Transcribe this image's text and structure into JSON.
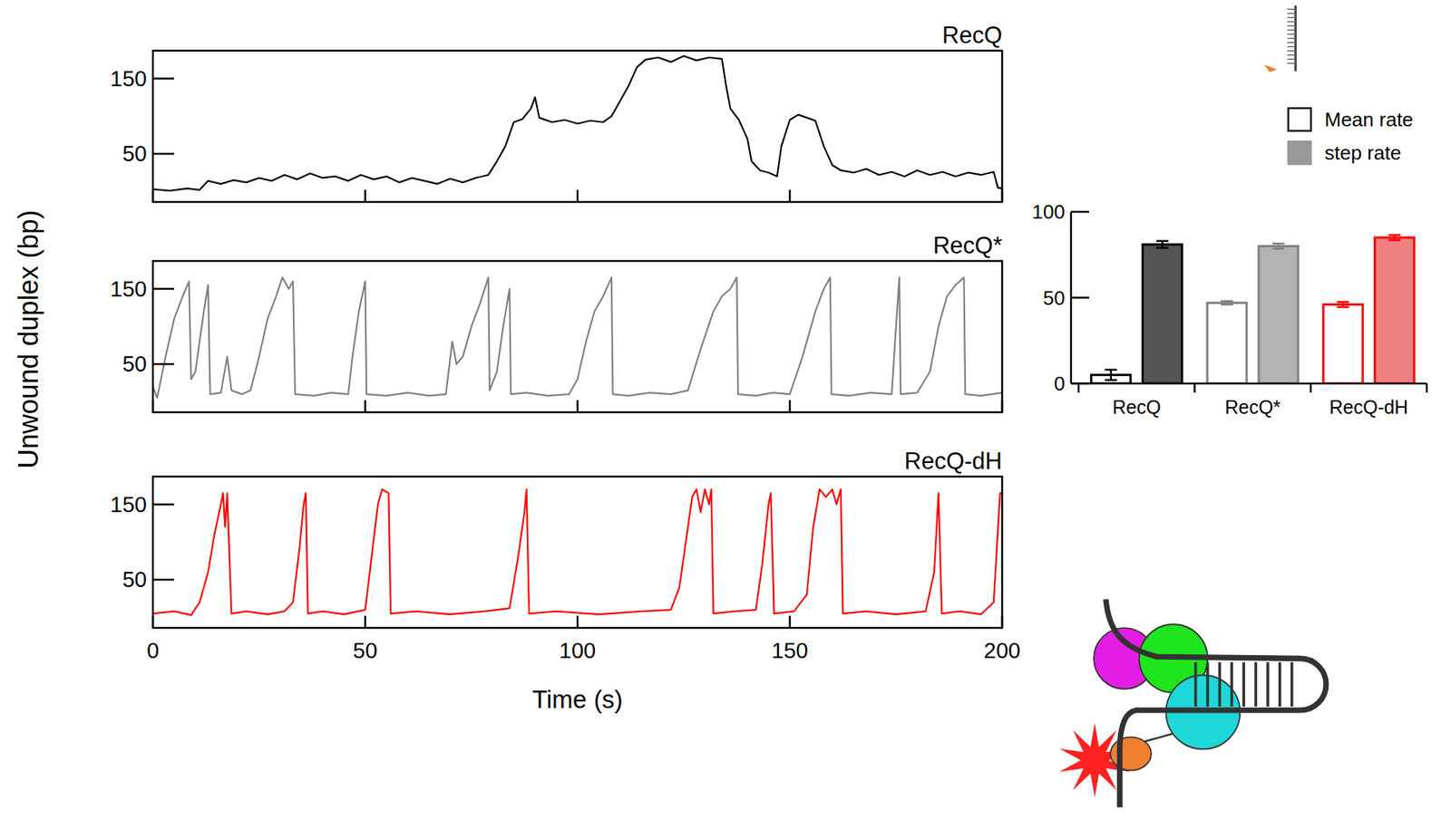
{
  "chart_data": [
    {
      "type": "line",
      "title": "RecQ",
      "xlim": [
        0,
        200
      ],
      "xticks": [
        0,
        50,
        100,
        150,
        200
      ],
      "ylim": [
        -14,
        187
      ],
      "yticks": [
        50,
        150
      ],
      "tick_labels": "y",
      "series": [
        {
          "color": "#000000",
          "x": [
            0,
            4,
            8,
            11,
            13,
            16,
            19,
            22,
            25,
            28,
            31,
            34,
            37,
            40,
            43,
            46,
            49,
            52,
            55,
            58,
            61,
            64,
            67,
            70,
            73,
            76,
            79,
            81,
            83,
            85,
            87,
            89,
            90,
            91,
            94,
            97,
            100,
            103,
            106,
            108,
            110,
            112,
            114,
            116,
            119,
            122,
            125,
            128,
            131,
            134,
            135,
            136,
            138,
            140,
            141,
            143,
            145,
            147,
            148,
            150,
            152,
            154,
            156,
            158,
            160,
            162,
            165,
            168,
            171,
            174,
            177,
            180,
            183,
            186,
            189,
            192,
            195,
            198,
            199,
            200
          ],
          "values": [
            3,
            1,
            4,
            2,
            14,
            10,
            15,
            12,
            18,
            14,
            22,
            16,
            24,
            18,
            20,
            14,
            22,
            16,
            20,
            12,
            18,
            14,
            10,
            17,
            12,
            18,
            22,
            40,
            60,
            92,
            96,
            110,
            125,
            98,
            92,
            95,
            90,
            94,
            92,
            100,
            120,
            140,
            165,
            175,
            178,
            172,
            180,
            174,
            178,
            176,
            140,
            110,
            95,
            70,
            40,
            28,
            25,
            20,
            60,
            95,
            102,
            98,
            94,
            60,
            35,
            28,
            25,
            30,
            22,
            26,
            20,
            28,
            22,
            26,
            20,
            25,
            22,
            26,
            5,
            4
          ]
        }
      ]
    },
    {
      "type": "line",
      "title": "RecQ*",
      "ylabel": "Unwound duplex (bp)",
      "xlim": [
        0,
        200
      ],
      "xticks": [
        0,
        50,
        100,
        150,
        200
      ],
      "ylim": [
        -14,
        187
      ],
      "yticks": [
        50,
        150
      ],
      "tick_labels": "y",
      "series": [
        {
          "color": "#808080",
          "x": [
            0,
            1,
            3,
            5,
            7,
            8.5,
            9,
            10,
            12,
            13,
            13.5,
            16,
            17.5,
            18.5,
            21,
            23,
            25,
            27,
            29,
            30.5,
            32,
            33,
            33.5,
            38,
            42,
            46,
            47,
            48.5,
            50,
            50.3,
            55,
            60,
            65,
            69,
            70.5,
            71.5,
            73,
            75,
            77,
            79,
            79.3,
            81,
            82.5,
            84,
            84.3,
            88,
            93,
            98,
            100,
            102,
            104,
            106,
            108,
            108.3,
            112,
            117,
            122,
            126,
            129,
            132,
            134,
            136,
            137.5,
            137.8,
            142,
            146,
            150,
            153,
            156,
            158,
            159.5,
            159.8,
            164,
            169,
            174,
            175,
            175.8,
            176.1,
            180,
            183,
            185,
            187,
            189,
            191,
            191.3,
            195,
            200
          ],
          "values": [
            20,
            5,
            60,
            110,
            140,
            160,
            30,
            40,
            120,
            155,
            10,
            12,
            60,
            15,
            10,
            15,
            60,
            110,
            140,
            165,
            150,
            160,
            10,
            8,
            12,
            10,
            60,
            120,
            160,
            10,
            8,
            12,
            8,
            10,
            80,
            50,
            60,
            100,
            130,
            165,
            15,
            40,
            100,
            150,
            10,
            12,
            8,
            10,
            30,
            80,
            120,
            140,
            165,
            10,
            8,
            12,
            10,
            15,
            70,
            120,
            140,
            150,
            165,
            10,
            8,
            12,
            10,
            60,
            120,
            150,
            165,
            10,
            8,
            12,
            10,
            100,
            165,
            10,
            12,
            40,
            100,
            140,
            155,
            165,
            10,
            8,
            12
          ]
        }
      ]
    },
    {
      "type": "line",
      "title": "RecQ-dH",
      "xlabel": "Time (s)",
      "xlim": [
        0,
        200
      ],
      "xticks": [
        0,
        50,
        100,
        150,
        200
      ],
      "ylim": [
        -14,
        187
      ],
      "yticks": [
        50,
        150
      ],
      "series": [
        {
          "color": "#ff0000",
          "x": [
            0,
            5,
            9,
            11,
            13,
            14.5,
            16,
            16.5,
            17,
            17.5,
            18.5,
            22,
            27,
            31,
            33,
            34.5,
            35.5,
            36,
            36.5,
            40,
            45,
            50,
            51.5,
            53,
            54,
            55.5,
            56,
            62,
            70,
            78,
            84,
            86,
            87.5,
            88,
            88.6,
            95,
            105,
            115,
            122,
            124,
            126,
            127,
            128,
            129,
            130,
            131,
            131.5,
            132,
            137,
            142,
            143.5,
            145,
            145.5,
            146.3,
            151,
            154,
            155.5,
            157,
            158.5,
            160,
            161,
            162,
            162.5,
            168,
            175,
            182,
            184,
            185,
            185.8,
            190,
            195,
            198,
            199.5,
            200
          ],
          "values": [
            5,
            8,
            3,
            20,
            60,
            110,
            150,
            165,
            120,
            165,
            5,
            8,
            4,
            8,
            20,
            90,
            150,
            165,
            5,
            8,
            4,
            10,
            80,
            150,
            170,
            165,
            5,
            8,
            4,
            8,
            12,
            80,
            140,
            170,
            5,
            8,
            4,
            8,
            10,
            40,
            120,
            160,
            170,
            140,
            170,
            150,
            170,
            5,
            8,
            10,
            70,
            150,
            165,
            5,
            8,
            30,
            120,
            170,
            160,
            170,
            150,
            170,
            5,
            8,
            4,
            8,
            60,
            165,
            5,
            8,
            4,
            20,
            165,
            165
          ]
        }
      ]
    },
    {
      "type": "bar",
      "categories": [
        "RecQ",
        "RecQ*",
        "RecQ-dH"
      ],
      "ylim": [
        0,
        100
      ],
      "yticks": [
        0,
        50,
        100
      ],
      "legend": "top",
      "series": [
        {
          "name": "Mean rate",
          "color": "#000000",
          "marker": "open",
          "colors": [
            "#000000",
            "#808080",
            "#ff0000"
          ],
          "values": [
            5,
            47,
            46
          ],
          "errors": [
            3,
            1,
            1.5
          ]
        },
        {
          "name": "step rate",
          "color": "#999999",
          "marker": "filled",
          "colors": [
            "#555555",
            "#b3b3b3",
            "#f08080"
          ],
          "values": [
            81,
            80,
            85
          ],
          "errors": [
            2,
            1.5,
            1.5
          ]
        }
      ]
    }
  ]
}
